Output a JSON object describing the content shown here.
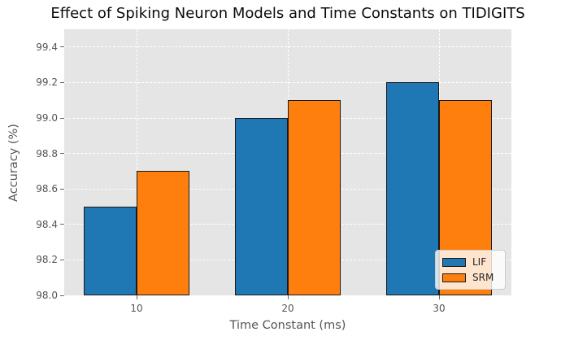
{
  "chart_data": {
    "type": "bar",
    "title": "Effect of Spiking Neuron Models and Time Constants on TIDIGITS",
    "xlabel": "Time Constant (ms)",
    "ylabel": "Accuracy (%)",
    "categories": [
      "10",
      "20",
      "30"
    ],
    "series": [
      {
        "name": "LIF",
        "color": "#1f77b4",
        "values": [
          98.5,
          99.0,
          99.2
        ]
      },
      {
        "name": "SRM",
        "color": "#ff7f0e",
        "values": [
          98.7,
          99.1,
          99.1
        ]
      }
    ],
    "ylim": [
      98.0,
      99.5
    ],
    "yticks": [
      "98.0",
      "98.2",
      "98.4",
      "98.6",
      "98.8",
      "99.0",
      "99.2",
      "99.4"
    ],
    "grid": true,
    "grid_style": "white dashed on gray",
    "legend_position": "lower right",
    "colors": {
      "plot_background": "#e5e5e5",
      "figure_background": "#ffffff",
      "grid_line": "#ffffff",
      "bar_edge": "#1a1a1a",
      "tick_text": "#555555",
      "title_text": "#0c0c0c"
    }
  }
}
